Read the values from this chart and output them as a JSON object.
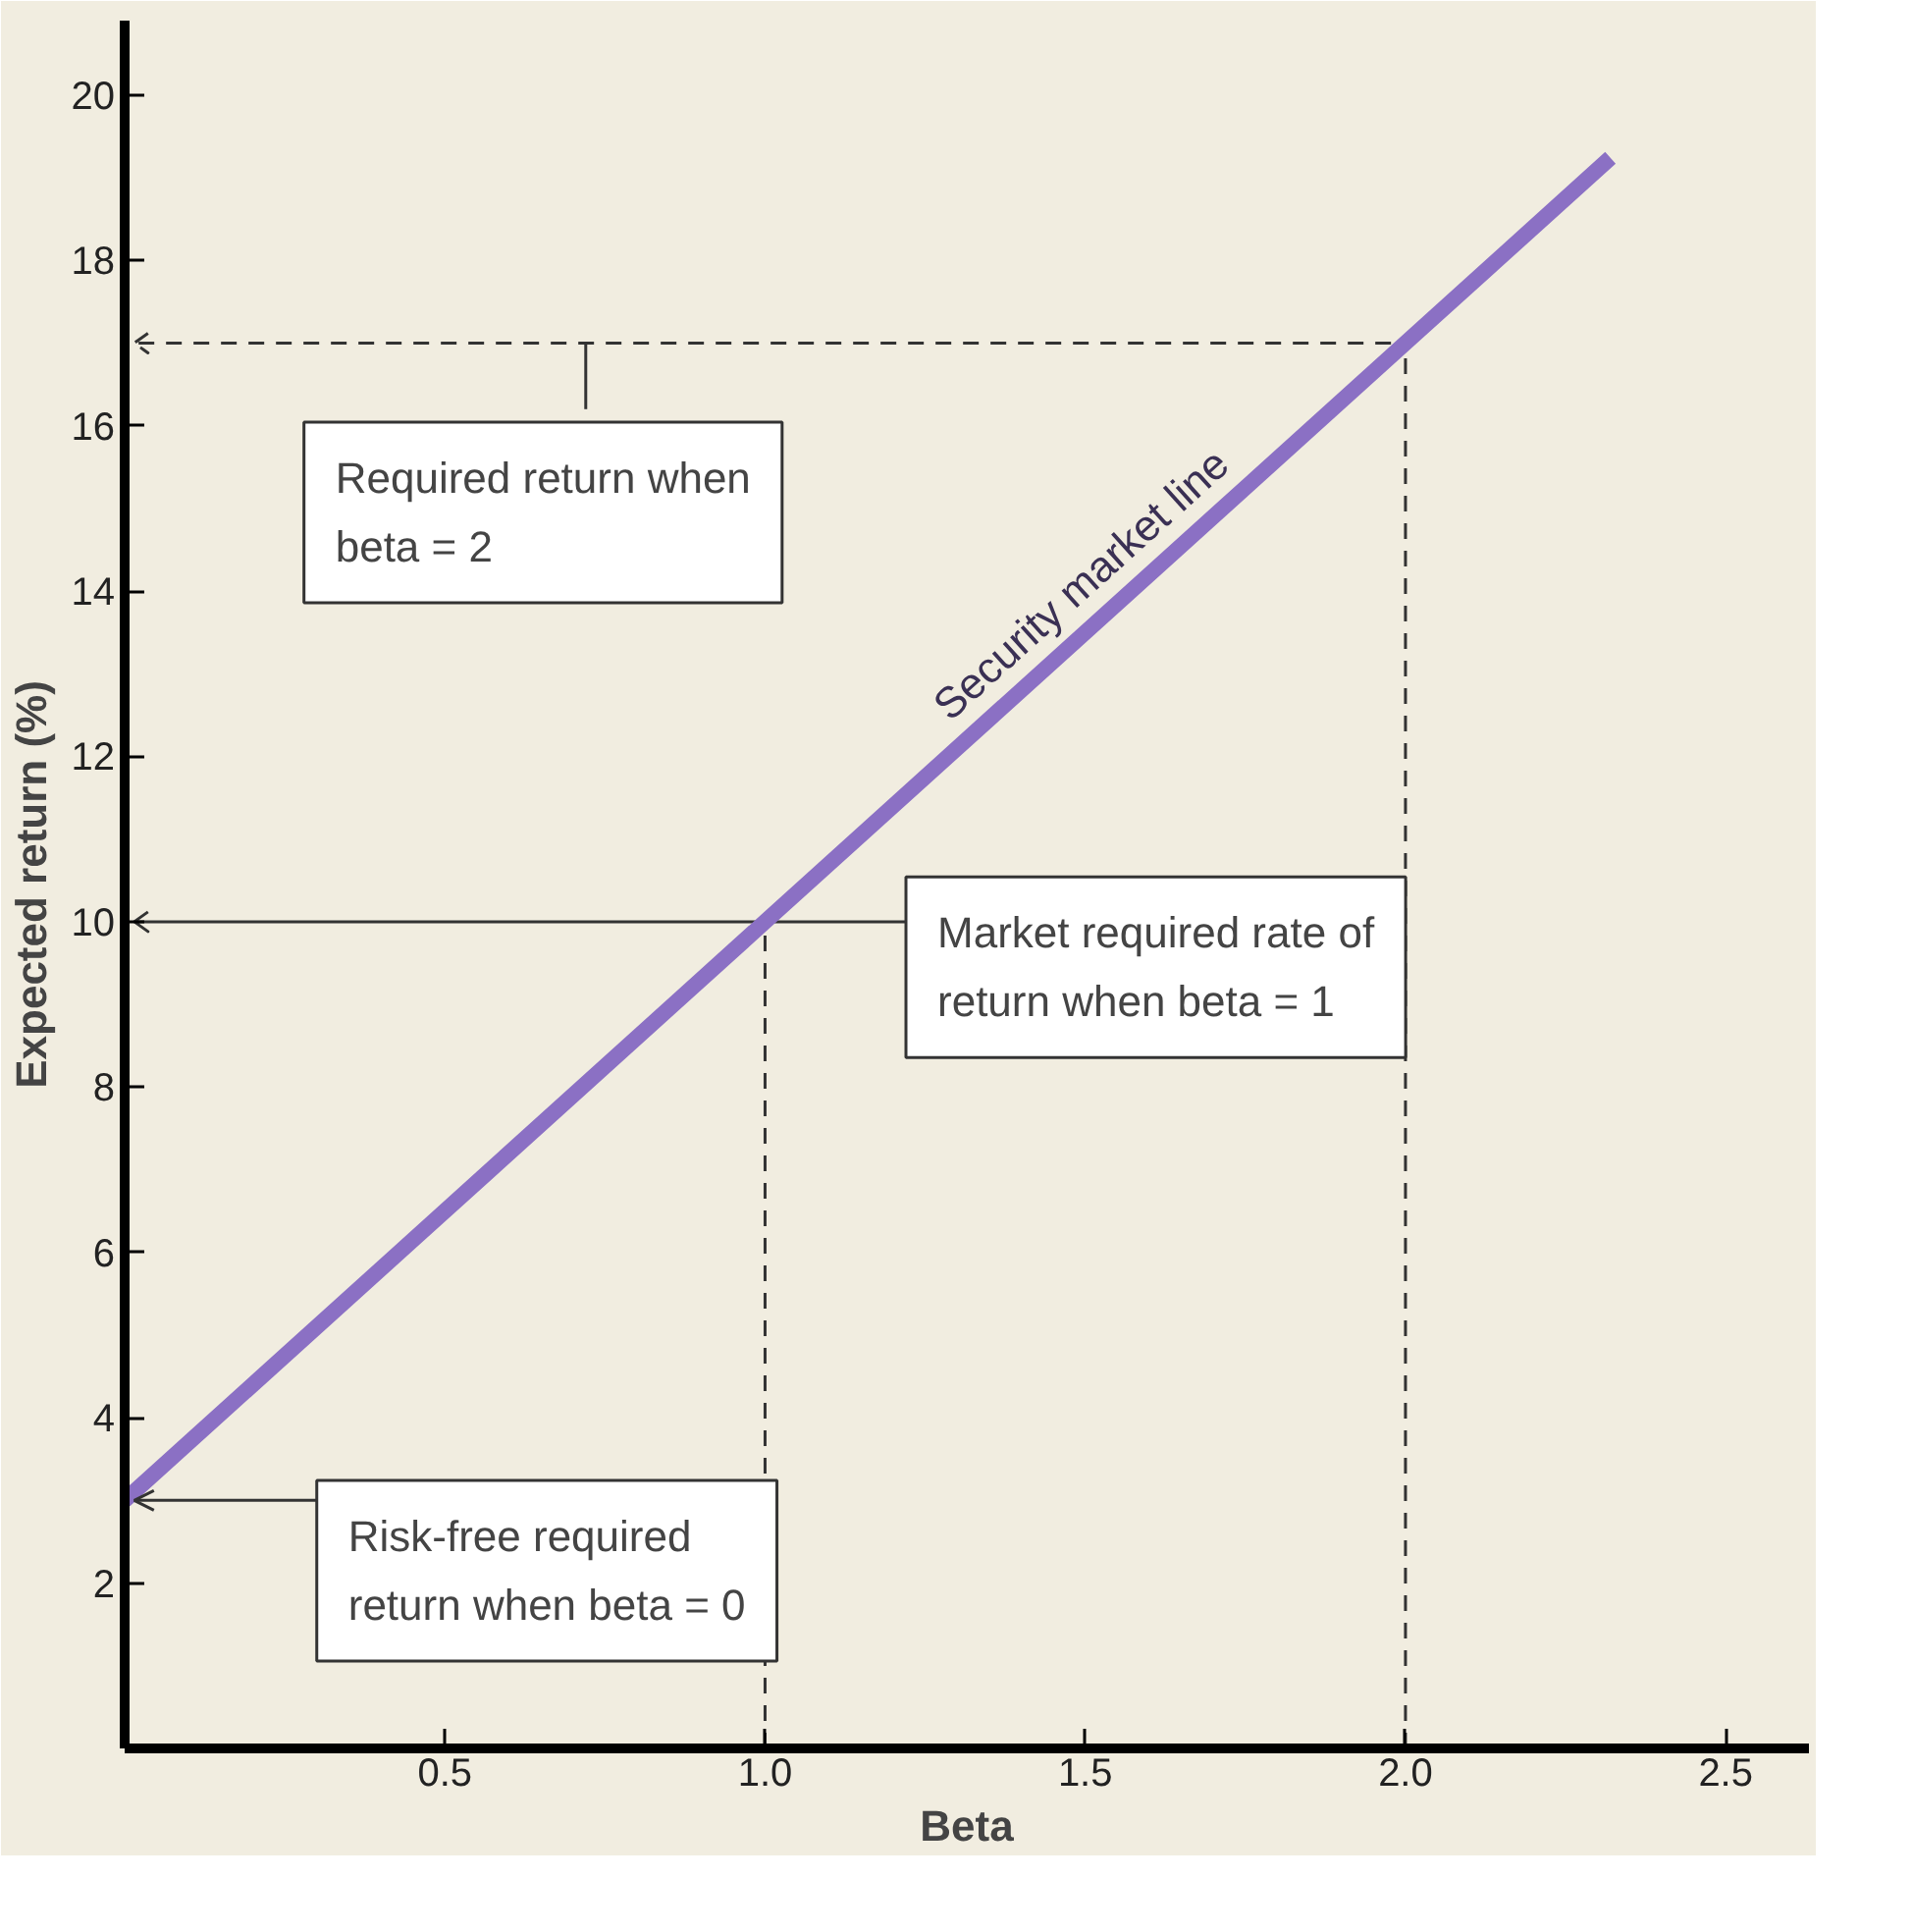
{
  "chart_data": {
    "type": "line",
    "xlabel": "Beta",
    "ylabel": "Expected return (%)",
    "x": [
      0,
      1,
      2,
      2.32
    ],
    "series": [
      {
        "name": "Security market line",
        "color": "#8b70c4",
        "values": [
          3,
          10,
          17,
          19.24
        ]
      }
    ],
    "xlim": [
      0,
      2.63
    ],
    "ylim": [
      0,
      20.9
    ],
    "xticks": [
      {
        "value": 0.5,
        "label": "0.5"
      },
      {
        "value": 1,
        "label": "1.0"
      },
      {
        "value": 1.5,
        "label": "1.5"
      },
      {
        "value": 2,
        "label": "2.0"
      },
      {
        "value": 2.5,
        "label": "2.5"
      }
    ],
    "yticks": [
      2,
      4,
      6,
      8,
      10,
      12,
      14,
      16,
      18,
      20
    ],
    "annotations": [
      {
        "text": "Risk-free required\nreturn when beta = 0",
        "x": 0,
        "y": 3
      },
      "Market required rate of\nreturn when beta = 1",
      {
        "text": "Required return when\nbeta = 2",
        "x": 0.72,
        "y": 17
      }
    ],
    "ref_lines": [
      {
        "axis": "y",
        "value": 10,
        "line_style": "solid",
        "color": "#333333"
      },
      {
        "axis": "y",
        "value": 17,
        "line_style": "dashed",
        "color": "#333333"
      },
      {
        "axis": "x",
        "value": 1,
        "line_style": "dashed",
        "color": "#333333"
      },
      {
        "axis": "x",
        "value": 2,
        "line_style": "dashed",
        "color": "#333333"
      }
    ],
    "grid": false,
    "marker": "none",
    "line_style": "solid"
  }
}
